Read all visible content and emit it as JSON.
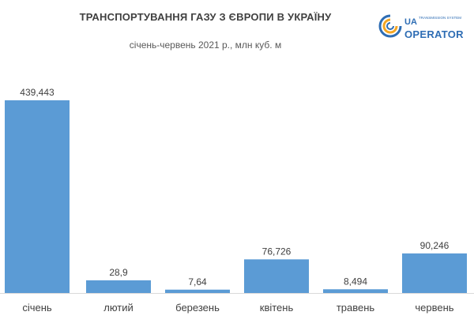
{
  "header": {
    "title": "ТРАНСПОРТУВАННЯ ГАЗУ З ЄВРОПИ В УКРАЇНУ",
    "subtitle": "січень-червень 2021 р., млн куб. м"
  },
  "logo": {
    "line1": "UA",
    "line2": "TRANSMISSION SYSTEM",
    "line3": "OPERATOR",
    "colors": {
      "blue": "#2e6db4",
      "orange": "#f5a623"
    }
  },
  "chart_data": {
    "type": "bar",
    "title": "ТРАНСПОРТУВАННЯ ГАЗУ З ЄВРОПИ В УКРАЇНУ",
    "subtitle": "січень-червень 2021 р., млн куб. м",
    "categories": [
      "січень",
      "лютий",
      "березень",
      "квітень",
      "травень",
      "червень"
    ],
    "values": [
      439.443,
      28.9,
      7.64,
      76.726,
      8.494,
      90.246
    ],
    "value_labels": [
      "439,443",
      "28,9",
      "7,64",
      "76,726",
      "8,494",
      "90,246"
    ],
    "xlabel": "",
    "ylabel": "",
    "ylim": [
      0,
      439.443
    ],
    "grid": false,
    "bar_color": "#5b9bd5",
    "axis_color": "#d9d9d9"
  }
}
